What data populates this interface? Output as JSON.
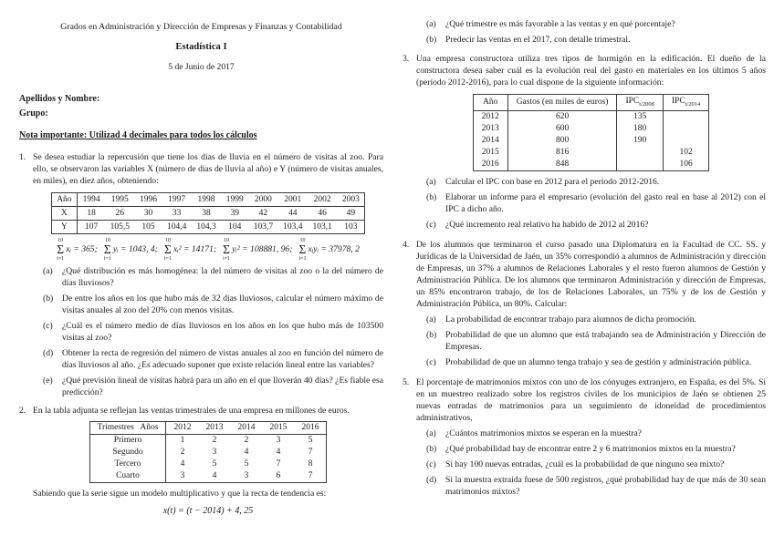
{
  "header": {
    "degree": "Grados en Administración y Dirección de Empresas y Finanzas y Contabilidad",
    "course": "Estadística I",
    "date": "5 de Junio de 2017"
  },
  "fields": {
    "name_label": "Apellidos y Nombre:",
    "group_label": "Grupo:"
  },
  "note": "Nota importante: Utilizad 4 decimales para todos los cálculos",
  "problem1": {
    "number": "1.",
    "statement": "Se desea estudiar la repercusión que tiene los días de lluvia en el número de visitas al zoo. Para ello, se observaron las variables X (número de días de lluvia al año) e Y (número de visitas anuales, en miles), en diez años, obteniendo:",
    "table": {
      "corner": "Año",
      "years": [
        "1994",
        "1995",
        "1996",
        "1997",
        "1998",
        "1999",
        "2000",
        "2001",
        "2002",
        "2003"
      ],
      "x_label": "X",
      "x": [
        "18",
        "26",
        "30",
        "33",
        "38",
        "39",
        "42",
        "44",
        "46",
        "49"
      ],
      "y_label": "Y",
      "y": [
        "107",
        "105,5",
        "105",
        "104,4",
        "104,3",
        "104",
        "103,7",
        "103,4",
        "103,1",
        "103"
      ]
    },
    "sums": {
      "sigma": "Σ",
      "upper": "10",
      "lower": "i=1",
      "terms": [
        {
          "expr": "xᵢ = 365;"
        },
        {
          "expr": "yᵢ = 1043, 4;"
        },
        {
          "expr": "xᵢ² = 14171;"
        },
        {
          "expr": "yᵢ² = 108881, 96;"
        },
        {
          "expr": "xᵢyᵢ = 37978, 2"
        }
      ]
    },
    "parts": [
      {
        "label": "(a)",
        "text": "¿Qué distribución es más homogénea: la del número de visitas al zoo o la del número de días lluviosos?"
      },
      {
        "label": "(b)",
        "text": "De entre los años en los que hubo más de 32 días lluviosos, calcular el número máximo de visitas anuales al zoo del 20% con menos visitas."
      },
      {
        "label": "(c)",
        "text": "¿Cuál es el número medio de días lluviosos en los años en los que hubo más de 103500 visitas al zoo?"
      },
      {
        "label": "(d)",
        "text": "Obtener la recta de regresión del número de vistas anuales al zoo en función del número de días lluviosos al año. ¿Es adecuado suponer que existe relación lineal entre las variables?"
      },
      {
        "label": "(e)",
        "text": "¿Qué previsión lineal de visitas habrá para un año en el que lloverán 40 días? ¿Es fiable esa predicción?"
      }
    ]
  },
  "problem2": {
    "number": "2.",
    "intro": "En la tabla adjunta se reflejan las ventas trimestrales de una empresa en millones de euros.",
    "table": {
      "corner": "Trimestres   Años",
      "years": [
        "2012",
        "2013",
        "2014",
        "2015",
        "2016"
      ],
      "rows": [
        {
          "label": "Primero",
          "values": [
            "1",
            "2",
            "2",
            "3",
            "5"
          ]
        },
        {
          "label": "Segundo",
          "values": [
            "2",
            "3",
            "4",
            "4",
            "7"
          ]
        },
        {
          "label": "Tercero",
          "values": [
            "4",
            "5",
            "5",
            "7",
            "8"
          ]
        },
        {
          "label": "Cuarto",
          "values": [
            "3",
            "4",
            "3",
            "6",
            "7"
          ]
        }
      ]
    },
    "trend_intro": "Sabiendo que la serie sigue un modelo multiplicativo y que la recta de tendencia es:",
    "trend_formula": "x(t) = (t − 2014) + 4, 25",
    "parts": [
      {
        "label": "(a)",
        "text": "¿Qué trimestre es más favorable a las ventas y en qué porcentaje?"
      },
      {
        "label": "(b)",
        "text": "Predecir las ventas en el 2017, con detalle trimestral."
      }
    ]
  },
  "problem3": {
    "number": "3.",
    "statement": "Una empresa constructora utiliza tres tipos de hormigón en la edificación. El dueño de la constructora desea saber cuál es la evolución real del gasto en materiales en los últimos 5 años (período 2012-2016), para lo cual dispone de la siguiente información:",
    "table": {
      "headers": {
        "year": "Año",
        "expense": "Gastos (en miles de euros)",
        "ipc1_label": "IPC",
        "ipc1_sub": "t/2008",
        "ipc2_label": "IPC",
        "ipc2_sub": "t/2014"
      },
      "rows": [
        {
          "year": "2012",
          "expense": "620",
          "ipc1": "135",
          "ipc2": ""
        },
        {
          "year": "2013",
          "expense": "600",
          "ipc1": "180",
          "ipc2": ""
        },
        {
          "year": "2014",
          "expense": "800",
          "ipc1": "190",
          "ipc2": ""
        },
        {
          "year": "2015",
          "expense": "816",
          "ipc1": "",
          "ipc2": "102"
        },
        {
          "year": "2016",
          "expense": "848",
          "ipc1": "",
          "ipc2": "106"
        }
      ]
    },
    "parts": [
      {
        "label": "(a)",
        "text": "Calcular el IPC con base en 2012 para el periodo 2012-2016."
      },
      {
        "label": "(b)",
        "text": "Elaborar un informe para el empresario (evolución del gasto real en base al 2012) con el IPC a dicho año."
      },
      {
        "label": "(c)",
        "text": "¿Qué incremento real relativo ha habido de 2012 al 2016?"
      }
    ]
  },
  "problem4": {
    "number": "4.",
    "statement": "De los alumnos que terminaron el curso pasado una Diplomatura en la Facultad de CC. SS. y Jurídicas de la Universidad de Jaén, un 35% correspondió a alumnos de Administración y dirección de Empresas, un 37% a alumnos de Relaciones Laborales y el resto fueron alumnos de Gestión y Administración Pública. De los alumnos que terminaron Administración y dirección de Empresas, un 85% encontraron trabajo, de los de Relaciones Laborales, un 75% y de los de Gestión y Administración Pública, un 80%. Calcular:",
    "parts": [
      {
        "label": "(a)",
        "text": "La probabilidad de encontrar trabajo para alumnos de dicha promoción."
      },
      {
        "label": "(b)",
        "text": "Probabilidad de que un alumno que está trabajando sea de Administración y Dirección de Empresas."
      },
      {
        "label": "(c)",
        "text": "Probabilidad de que un alumno tenga trabajo y sea de gestión y administración pública."
      }
    ]
  },
  "problem5": {
    "number": "5.",
    "statement": "El porcentaje de matrimonios mixtos con uno de los cónyuges extranjero, en España, es del 5%. Si en un muestreo realizado sobre los registros civiles de los municipios de Jaén se obtienen 25 nuevas entradas de matrimonios para un seguimiento de idoneidad de procedimientos administrativos,",
    "parts": [
      {
        "label": "(a)",
        "text": "¿Cuántos matrimonios mixtos se esperan en la muestra?"
      },
      {
        "label": "(b)",
        "text": "¿Qué probabilidad hay de encontrar entre 2 y 6 matrimonios mixtos en la muestra?"
      },
      {
        "label": "(c)",
        "text": "Si hay 100 nuevas entradas, ¿cuál es la probabilidad de que ninguno sea mixto?"
      },
      {
        "label": "(d)",
        "text": "Si la muestra extraída fuese de 500 registros, ¿qué probabilidad hay de que más de 30 sean matrimonios mixtos?"
      }
    ]
  }
}
